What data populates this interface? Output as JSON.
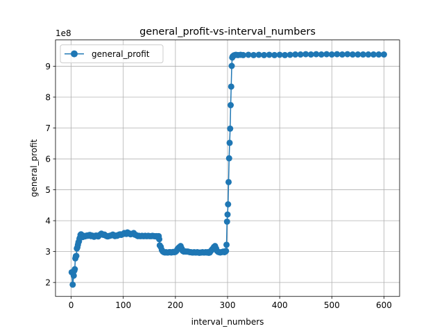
{
  "chart_data": {
    "type": "line",
    "title": "general_profit-vs-interval_numbers",
    "xlabel": "interval_numbers",
    "ylabel": "general_profit",
    "y_multiplier_label": "1e8",
    "xlim": [
      -30,
      630
    ],
    "ylim": [
      1.55,
      9.85
    ],
    "x_ticks": [
      0,
      100,
      200,
      300,
      400,
      500,
      600
    ],
    "y_ticks": [
      2,
      3,
      4,
      5,
      6,
      7,
      8,
      9
    ],
    "grid": true,
    "legend_position": "upper-left",
    "series": [
      {
        "name": "general_profit",
        "color": "#1f77b4",
        "marker": "circle",
        "x": [
          1,
          3,
          5,
          6,
          7,
          8,
          9,
          10,
          11,
          12,
          13,
          14,
          15,
          16,
          17,
          18,
          19,
          20,
          22,
          24,
          26,
          28,
          30,
          32,
          34,
          36,
          38,
          40,
          42,
          44,
          46,
          48,
          50,
          52,
          54,
          56,
          58,
          60,
          62,
          64,
          66,
          68,
          70,
          72,
          74,
          76,
          78,
          80,
          82,
          84,
          86,
          88,
          90,
          92,
          94,
          96,
          98,
          100,
          102,
          104,
          106,
          108,
          110,
          112,
          114,
          116,
          118,
          120,
          122,
          124,
          126,
          128,
          130,
          132,
          134,
          136,
          138,
          140,
          142,
          144,
          146,
          148,
          150,
          152,
          154,
          156,
          158,
          160,
          162,
          164,
          166,
          168,
          169,
          170,
          172,
          174,
          176,
          178,
          180,
          182,
          184,
          186,
          188,
          190,
          192,
          194,
          196,
          198,
          200,
          202,
          204,
          206,
          208,
          210,
          212,
          214,
          216,
          218,
          220,
          222,
          224,
          226,
          228,
          230,
          232,
          234,
          236,
          238,
          240,
          242,
          244,
          246,
          248,
          250,
          252,
          254,
          256,
          258,
          260,
          262,
          264,
          266,
          268,
          270,
          272,
          274,
          276,
          278,
          280,
          282,
          284,
          286,
          288,
          290,
          292,
          294,
          296,
          297,
          298,
          299,
          300,
          301,
          302,
          303,
          304,
          305,
          306,
          307,
          308,
          309,
          310,
          312,
          314,
          316,
          320,
          325,
          330,
          340,
          350,
          360,
          370,
          380,
          390,
          400,
          410,
          420,
          430,
          440,
          450,
          460,
          470,
          480,
          490,
          500,
          510,
          520,
          530,
          540,
          550,
          560,
          570,
          580,
          590,
          600
        ],
        "y": [
          2.33,
          1.93,
          2.22,
          2.38,
          2.43,
          2.78,
          2.85,
          2.86,
          3.1,
          3.14,
          3.22,
          3.3,
          3.33,
          3.42,
          3.45,
          3.54,
          3.56,
          3.5,
          3.47,
          3.51,
          3.49,
          3.5,
          3.52,
          3.51,
          3.53,
          3.54,
          3.5,
          3.52,
          3.5,
          3.48,
          3.51,
          3.52,
          3.5,
          3.49,
          3.53,
          3.55,
          3.58,
          3.56,
          3.54,
          3.55,
          3.52,
          3.5,
          3.49,
          3.5,
          3.51,
          3.52,
          3.53,
          3.55,
          3.52,
          3.5,
          3.52,
          3.51,
          3.53,
          3.55,
          3.56,
          3.54,
          3.56,
          3.57,
          3.6,
          3.58,
          3.57,
          3.62,
          3.6,
          3.58,
          3.56,
          3.57,
          3.58,
          3.6,
          3.55,
          3.54,
          3.52,
          3.5,
          3.51,
          3.5,
          3.5,
          3.51,
          3.5,
          3.5,
          3.51,
          3.5,
          3.5,
          3.51,
          3.5,
          3.5,
          3.5,
          3.51,
          3.5,
          3.5,
          3.49,
          3.5,
          3.48,
          3.5,
          3.4,
          3.2,
          3.15,
          3.05,
          3.0,
          2.98,
          2.97,
          2.98,
          2.97,
          2.97,
          2.98,
          2.98,
          2.97,
          2.98,
          2.99,
          2.98,
          2.99,
          3.02,
          3.08,
          3.12,
          3.15,
          3.18,
          3.1,
          3.02,
          3.0,
          3.01,
          3.0,
          3.0,
          3.0,
          2.99,
          2.98,
          2.98,
          2.97,
          2.97,
          2.98,
          2.97,
          2.97,
          2.98,
          2.97,
          2.96,
          2.97,
          2.97,
          2.98,
          2.97,
          2.97,
          2.98,
          2.97,
          2.98,
          2.96,
          2.97,
          3.02,
          3.06,
          3.1,
          3.15,
          3.18,
          3.1,
          3.02,
          2.99,
          2.98,
          2.97,
          2.98,
          2.99,
          3.0,
          2.98,
          3.0,
          3.02,
          3.22,
          3.97,
          4.2,
          4.53,
          5.25,
          6.02,
          6.52,
          6.98,
          7.74,
          8.34,
          9.01,
          9.28,
          9.32,
          9.35,
          9.36,
          9.37,
          9.36,
          9.37,
          9.36,
          9.37,
          9.36,
          9.37,
          9.36,
          9.37,
          9.36,
          9.37,
          9.36,
          9.37,
          9.38,
          9.38,
          9.39,
          9.38,
          9.39,
          9.38,
          9.39,
          9.38,
          9.39,
          9.38,
          9.39,
          9.38,
          9.38,
          9.38,
          9.38,
          9.38,
          9.38,
          9.38
        ]
      }
    ]
  }
}
